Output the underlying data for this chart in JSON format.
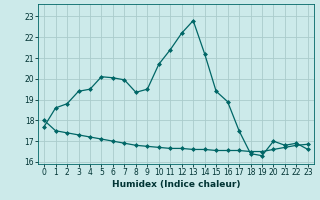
{
  "xlabel": "Humidex (Indice chaleur)",
  "bg_color": "#cceaea",
  "grid_color": "#aacccc",
  "line_color": "#006666",
  "xlim": [
    -0.5,
    23.5
  ],
  "ylim": [
    15.9,
    23.6
  ],
  "yticks": [
    16,
    17,
    18,
    19,
    20,
    21,
    22,
    23
  ],
  "xticks": [
    0,
    1,
    2,
    3,
    4,
    5,
    6,
    7,
    8,
    9,
    10,
    11,
    12,
    13,
    14,
    15,
    16,
    17,
    18,
    19,
    20,
    21,
    22,
    23
  ],
  "series1_x": [
    0,
    1,
    2,
    3,
    4,
    5,
    6,
    7,
    8,
    9,
    10,
    11,
    12,
    13,
    14,
    15,
    16,
    17,
    18,
    19,
    20,
    21,
    22,
    23
  ],
  "series1_y": [
    17.7,
    18.6,
    18.8,
    19.4,
    19.5,
    20.1,
    20.05,
    19.95,
    19.35,
    19.5,
    20.7,
    21.4,
    22.2,
    22.8,
    21.2,
    19.4,
    18.9,
    17.5,
    16.4,
    16.3,
    17.0,
    16.8,
    16.9,
    16.6
  ],
  "series2_x": [
    0,
    1,
    2,
    3,
    4,
    5,
    6,
    7,
    8,
    9,
    10,
    11,
    12,
    13,
    14,
    15,
    16,
    17,
    18,
    19,
    20,
    21,
    22,
    23
  ],
  "series2_y": [
    18.0,
    17.5,
    17.4,
    17.3,
    17.2,
    17.1,
    17.0,
    16.9,
    16.8,
    16.75,
    16.7,
    16.65,
    16.65,
    16.6,
    16.6,
    16.55,
    16.55,
    16.55,
    16.5,
    16.5,
    16.6,
    16.7,
    16.8,
    16.85
  ]
}
